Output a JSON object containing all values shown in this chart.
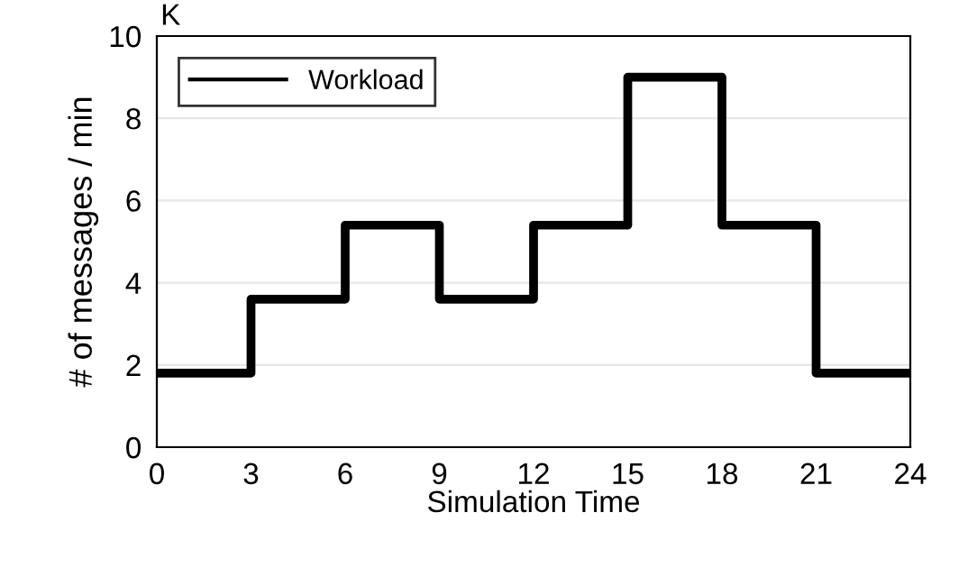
{
  "chart_data": {
    "type": "step",
    "xlabel": "Simulation Time",
    "ylabel": "# of messages / min",
    "annotations": [
      "K"
    ],
    "x": [
      0,
      3,
      6,
      9,
      12,
      15,
      18,
      21,
      24
    ],
    "series": [
      {
        "name": "Workload",
        "color": "#000000",
        "values": [
          1.8,
          3.6,
          5.4,
          3.6,
          5.4,
          9.0,
          5.4,
          1.8,
          1.8
        ]
      }
    ],
    "xlim": [
      0,
      24
    ],
    "xticks": [
      0,
      3,
      6,
      9,
      12,
      15,
      18,
      21,
      24
    ],
    "ylim": [
      0,
      10
    ],
    "yticks": [
      0,
      2,
      4,
      6,
      8,
      10
    ],
    "grid": "y",
    "legend": "top left",
    "line_style": "solid",
    "marker": "none"
  }
}
